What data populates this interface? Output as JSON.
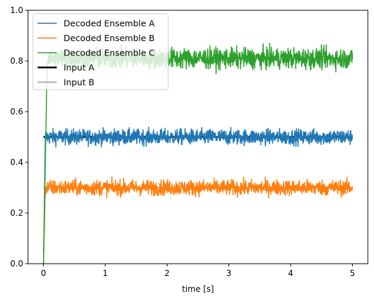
{
  "chart_data": {
    "type": "line",
    "title": "",
    "xlabel": "time [s]",
    "ylabel": "",
    "xlim": [
      -0.25,
      5.25
    ],
    "ylim": [
      0.0,
      1.0
    ],
    "x_ticks": [
      0,
      1,
      2,
      3,
      4,
      5
    ],
    "y_ticks": [
      0.0,
      0.2,
      0.4,
      0.6,
      0.8,
      1.0
    ],
    "x_tick_labels": [
      "0",
      "1",
      "2",
      "3",
      "4",
      "5"
    ],
    "y_tick_labels": [
      "0.0",
      "0.2",
      "0.4",
      "0.6",
      "0.8",
      "1.0"
    ],
    "grid": false,
    "legend_position": "top-left",
    "series": [
      {
        "name": "Decoded Ensemble A",
        "color": "#1f77b4",
        "kind": "noisy",
        "start": [
          0,
          0.0
        ],
        "rise_end": [
          0.03,
          0.5
        ],
        "steady_value": 0.5,
        "noise_amplitude": 0.015,
        "x_end": 5.0
      },
      {
        "name": "Decoded Ensemble B",
        "color": "#ff7f0e",
        "kind": "noisy",
        "start": [
          0,
          0.0
        ],
        "rise_end": [
          0.03,
          0.3
        ],
        "steady_value": 0.3,
        "noise_amplitude": 0.015,
        "x_end": 5.0
      },
      {
        "name": "Decoded Ensemble C",
        "color": "#2ca02c",
        "kind": "noisy",
        "start": [
          0,
          0.0
        ],
        "rise_end": [
          0.06,
          0.8
        ],
        "steady_value": 0.81,
        "noise_amplitude": 0.02,
        "x_end": 5.0
      },
      {
        "name": "Input A",
        "color": "#000000",
        "kind": "constant",
        "value": 0.5,
        "x": [
          0,
          5.0
        ]
      },
      {
        "name": "Input B",
        "color": "#bbbbbb",
        "kind": "constant",
        "value": 0.3,
        "x": [
          0,
          5.0
        ]
      }
    ]
  }
}
